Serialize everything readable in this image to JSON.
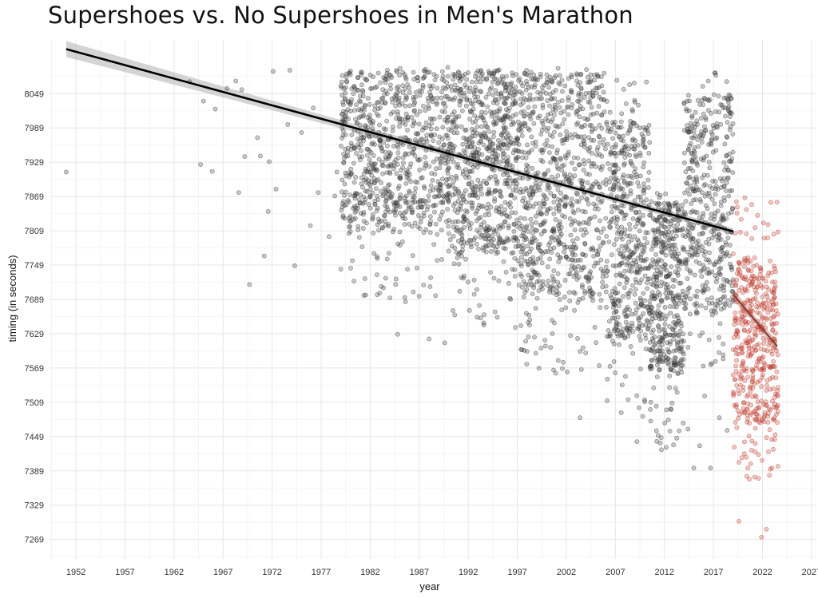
{
  "chart_data": {
    "type": "scatter",
    "title": "Supershoes vs. No Supershoes in Men's Marathon",
    "xlabel": "year",
    "ylabel": "timing (in seconds)",
    "xlim": [
      1949.3,
      2027.5
    ],
    "ylim": [
      7235,
      8143
    ],
    "x_ticks": [
      1952,
      1957,
      1962,
      1967,
      1972,
      1977,
      1982,
      1987,
      1992,
      1997,
      2002,
      2007,
      2012,
      2017,
      2022,
      2027
    ],
    "y_ticks": [
      7269,
      7329,
      7389,
      7449,
      7509,
      7569,
      7629,
      7689,
      7749,
      7809,
      7869,
      7929,
      7989,
      8049
    ],
    "grid": true,
    "legend": "none",
    "series": [
      {
        "supershoes": false,
        "color": "#3a3a3a",
        "trend_line": {
          "x": [
            1951.0,
            2019.0
          ],
          "y": [
            8127,
            7808
          ]
        },
        "points": [
          [
            1951.0,
            7912
          ],
          [
            1963.6,
            8070
          ],
          [
            1965.0,
            8036
          ],
          [
            1966.2,
            8022
          ],
          [
            1967.4,
            8058
          ],
          [
            1968.3,
            8071
          ],
          [
            1968.9,
            8056
          ],
          [
            1969.7,
            7715
          ],
          [
            1970.5,
            7972
          ],
          [
            1971.2,
            7765
          ],
          [
            1971.7,
            7930
          ],
          [
            1972.4,
            7882
          ],
          [
            1973.6,
            7995
          ],
          [
            1974.3,
            7748
          ],
          [
            1975.0,
            7981
          ],
          [
            1975.9,
            7818
          ],
          [
            1976.7,
            7876
          ],
          [
            1977.8,
            7799
          ],
          [
            1978.6,
            7912
          ],
          [
            1979.0,
            7742
          ],
          [
            1964.7,
            7925
          ],
          [
            1965.9,
            7913
          ],
          [
            1968.6,
            7876
          ],
          [
            1969.2,
            7939
          ],
          [
            1970.8,
            7940
          ],
          [
            1971.6,
            7843
          ],
          [
            1972.1,
            8088
          ],
          [
            1973.8,
            8090
          ],
          [
            1976.2,
            8024
          ],
          [
            1978.4,
            7870
          ]
        ],
        "clouds": [
          {
            "n": 820,
            "x": [
              1979.0,
              1990.0
            ],
            "y": [
              7810,
              8090
            ],
            "ywide": [
              7690,
              8095
            ]
          },
          {
            "n": 700,
            "x": [
              1990.0,
              1997.0
            ],
            "y": [
              7770,
              8090
            ],
            "ywide": [
              7640,
              8095
            ]
          },
          {
            "n": 820,
            "x": [
              1997.0,
              2006.0
            ],
            "y": [
              7690,
              8085
            ],
            "ywide": [
              7560,
              8095
            ]
          },
          {
            "n": 480,
            "x": [
              2006.0,
              2010.5
            ],
            "y": [
              7620,
              8000
            ],
            "ywide": [
              7480,
              8090
            ]
          },
          {
            "n": 430,
            "x": [
              2010.5,
              2014.0
            ],
            "y": [
              7560,
              7860
            ],
            "ywide": [
              7430,
              7880
            ]
          },
          {
            "n": 460,
            "x": [
              2014.0,
              2019.0
            ],
            "y": [
              7660,
              8050
            ],
            "ywide": [
              7560,
              8090
            ]
          }
        ],
        "outliers": [
          [
            1984.8,
            7628
          ],
          [
            1985.6,
            7685
          ],
          [
            1986.4,
            7702
          ],
          [
            1988.0,
            7620
          ],
          [
            1989.6,
            7613
          ],
          [
            1992.6,
            7698
          ],
          [
            1996.8,
            7640
          ],
          [
            1998.0,
            7598
          ],
          [
            2001.6,
            7568
          ],
          [
            2003.4,
            7482
          ],
          [
            2007.1,
            7640
          ],
          [
            2009.2,
            7440
          ],
          [
            2010.0,
            7510
          ],
          [
            2011.7,
            7426
          ],
          [
            2013.5,
            7459
          ],
          [
            2015.0,
            7394
          ],
          [
            2015.6,
            7433
          ],
          [
            2016.7,
            7394
          ],
          [
            2017.6,
            7482
          ],
          [
            2018.4,
            7460
          ],
          [
            2012.4,
            7478
          ],
          [
            2014.4,
            7462
          ],
          [
            2016.1,
            7520
          ],
          [
            2010.6,
            7476
          ]
        ]
      },
      {
        "supershoes": true,
        "color": "#c0392b",
        "trend_line": {
          "x": [
            2019.0,
            2023.5
          ],
          "y": [
            7698,
            7607
          ]
        },
        "clouds": [
          {
            "n": 440,
            "x": [
              2019.0,
              2023.6
            ],
            "y": [
              7470,
              7760
            ],
            "ywide": [
              7370,
              7870
            ]
          }
        ],
        "points": [
          [
            2019.6,
            7301
          ],
          [
            2021.9,
            7273
          ],
          [
            2022.4,
            7287
          ],
          [
            2020.5,
            7394
          ],
          [
            2021.2,
            7378
          ],
          [
            2021.6,
            7376
          ],
          [
            2019.9,
            7412
          ],
          [
            2022.8,
            7392
          ],
          [
            2020.2,
            7867
          ],
          [
            2020.9,
            7855
          ],
          [
            2021.5,
            7836
          ],
          [
            2019.4,
            7840
          ]
        ]
      }
    ]
  }
}
